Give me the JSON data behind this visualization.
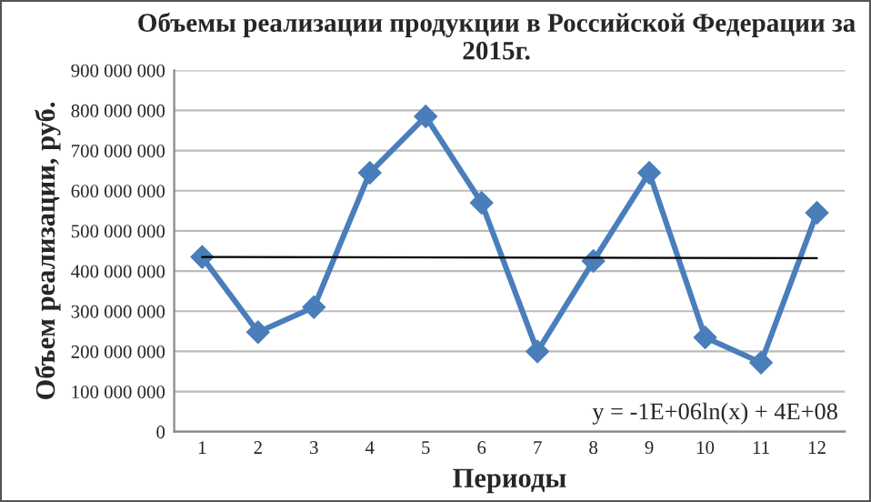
{
  "chart_data": {
    "type": "line",
    "title": "Объемы реализации продукции в Российской Федерации за 2015г.",
    "xlabel": "Периоды",
    "ylabel": "Объем реализации, руб.",
    "x": [
      1,
      2,
      3,
      4,
      5,
      6,
      7,
      8,
      9,
      10,
      11,
      12
    ],
    "series": [
      {
        "color": "#4a7ebb",
        "marker": "diamond",
        "values": [
          435000000,
          248000000,
          310000000,
          645000000,
          785000000,
          570000000,
          200000000,
          425000000,
          645000000,
          235000000,
          172000000,
          545000000
        ]
      },
      {
        "color": "#000000",
        "marker": "none",
        "x": [
          1,
          12
        ],
        "values": [
          435000000,
          432000000
        ]
      }
    ],
    "xlim": [
      0.5,
      12.5
    ],
    "xticks": [
      1,
      2,
      3,
      4,
      5,
      6,
      7,
      8,
      9,
      10,
      11,
      12
    ],
    "ylim": [
      0,
      900000000
    ],
    "yticks": [
      {
        "value": 0,
        "label": "0"
      },
      {
        "value": 100000000,
        "label": "100 000 000"
      },
      {
        "value": 200000000,
        "label": "200 000 000"
      },
      {
        "value": 300000000,
        "label": "300 000 000"
      },
      {
        "value": 400000000,
        "label": "400 000 000"
      },
      {
        "value": 500000000,
        "label": "500 000 000"
      },
      {
        "value": 600000000,
        "label": "600 000 000"
      },
      {
        "value": 700000000,
        "label": "700 000 000"
      },
      {
        "value": 800000000,
        "label": "800 000 000"
      },
      {
        "value": 900000000,
        "label": "900 000 000"
      }
    ],
    "grid": "y",
    "legend": false,
    "annotations": [
      "y = -1E+06ln(x) + 4E+08"
    ]
  }
}
